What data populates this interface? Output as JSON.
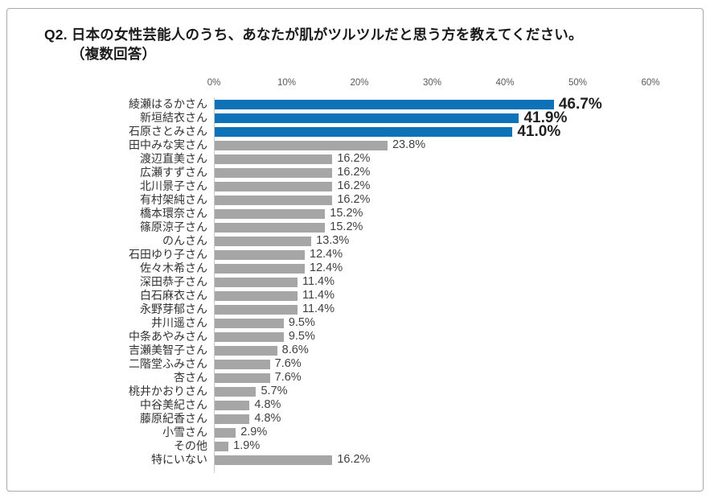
{
  "title": {
    "line1": "Q2. 日本の女性芸能人のうち、あなたが肌がツルツルだと思う方を教えてください。",
    "line2": "（複数回答）"
  },
  "chart_data": {
    "type": "bar",
    "orientation": "horizontal",
    "title": "Q2. 日本の女性芸能人のうち、あなたが肌がツルツルだと思う方を教えてください。（複数回答）",
    "categories": [
      "綾瀬はるかさん",
      "新垣結衣さん",
      "石原さとみさん",
      "田中みな実さん",
      "渡辺直美さん",
      "広瀬すずさん",
      "北川景子さん",
      "有村架純さん",
      "橋本環奈さん",
      "篠原涼子さん",
      "のんさん",
      "石田ゆり子さん",
      "佐々木希さん",
      "深田恭子さん",
      "白石麻衣さん",
      "永野芽郁さん",
      "井川遥さん",
      "中条あやみさん",
      "吉瀬美智子さん",
      "二階堂ふみさん",
      "杏さん",
      "桃井かおりさん",
      "中谷美紀さん",
      "藤原紀香さん",
      "小雪さん",
      "その他",
      "特にいない"
    ],
    "values": [
      46.7,
      41.9,
      41.0,
      23.8,
      16.2,
      16.2,
      16.2,
      16.2,
      15.2,
      15.2,
      13.3,
      12.4,
      12.4,
      11.4,
      11.4,
      11.4,
      9.5,
      9.5,
      8.6,
      7.6,
      7.6,
      5.7,
      4.8,
      4.8,
      2.9,
      1.9,
      16.2
    ],
    "value_labels": [
      "46.7%",
      "41.9%",
      "41.0%",
      "23.8%",
      "16.2%",
      "16.2%",
      "16.2%",
      "16.2%",
      "15.2%",
      "15.2%",
      "13.3%",
      "12.4%",
      "12.4%",
      "11.4%",
      "11.4%",
      "11.4%",
      "9.5%",
      "9.5%",
      "8.6%",
      "7.6%",
      "7.6%",
      "5.7%",
      "4.8%",
      "4.8%",
      "2.9%",
      "1.9%",
      "16.2%"
    ],
    "axis": {
      "tick_labels": [
        "0%",
        "10%",
        "20%",
        "30%",
        "40%",
        "50%",
        "60%"
      ],
      "tick_values": [
        0,
        10,
        20,
        30,
        40,
        50,
        60
      ],
      "max": 60,
      "position": "top"
    },
    "highlight_count": 3,
    "colors": {
      "highlight_bar": "#0e72b8",
      "default_bar": "#a6a6a6",
      "tick_text": "#595959",
      "category_text": "#333333",
      "value_text": "#404040",
      "highlight_value_text": "#1f1f1f",
      "axis_line": "#c9c9c9",
      "frame_border": "#a9a9a9"
    },
    "grid": false,
    "legend": "none",
    "xlim": [
      0,
      60
    ]
  }
}
